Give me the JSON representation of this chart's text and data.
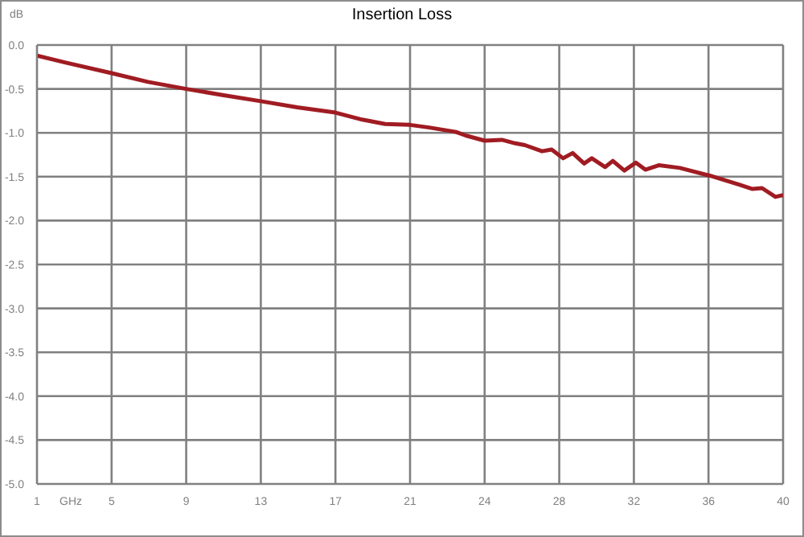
{
  "chart_data": {
    "type": "line",
    "title": "Insertion Loss",
    "xlabel": "GHz",
    "ylabel": "dB",
    "x": [
      1,
      2.5,
      4.9,
      6.8,
      8.8,
      10.7,
      12.7,
      14.6,
      16.6,
      18,
      19.2,
      20.5,
      21.5,
      22.9,
      23.4,
      24.4,
      25.3,
      26,
      26.5,
      27.4,
      27.9,
      28.5,
      29,
      29.6,
      30,
      30.7,
      31.1,
      31.7,
      32.3,
      32.8,
      33.5,
      34.6,
      36.2,
      37.7,
      38.4,
      38.9,
      39.6,
      40
    ],
    "series": [
      {
        "color": "#a01c22",
        "values": [
          -0.12,
          -0.2,
          -0.32,
          -0.42,
          -0.5,
          -0.57,
          -0.64,
          -0.71,
          -0.77,
          -0.85,
          -0.9,
          -0.91,
          -0.94,
          -0.99,
          -1.03,
          -1.09,
          -1.08,
          -1.12,
          -1.14,
          -1.21,
          -1.19,
          -1.29,
          -1.23,
          -1.35,
          -1.29,
          -1.39,
          -1.32,
          -1.43,
          -1.34,
          -1.42,
          -1.37,
          -1.4,
          -1.49,
          -1.59,
          -1.64,
          -1.63,
          -1.73,
          -1.71
        ]
      }
    ],
    "xlim": [
      1,
      40
    ],
    "xticks": [
      1,
      {
        "value": 4.9,
        "label": "5"
      },
      {
        "value": 8.8,
        "label": "9"
      },
      {
        "value": 12.7,
        "label": "13"
      },
      {
        "value": 16.6,
        "label": "17"
      },
      {
        "value": 20.5,
        "label": "21"
      },
      {
        "value": 24.4,
        "label": "24"
      },
      {
        "value": 28.3,
        "label": "28"
      },
      {
        "value": 32.2,
        "label": "32"
      },
      {
        "value": 36.1,
        "label": "36"
      },
      40
    ],
    "ylim": [
      -5,
      0
    ],
    "yticks": [
      {
        "value": -5,
        "label": "-5.0"
      },
      {
        "value": -4.5,
        "label": "-4.5"
      },
      {
        "value": -4,
        "label": "-4.0"
      },
      {
        "value": -3.5,
        "label": "-3.5"
      },
      {
        "value": -3,
        "label": "-3.0"
      },
      {
        "value": -2.5,
        "label": "-2.5"
      },
      {
        "value": -2,
        "label": "-2.0"
      },
      {
        "value": -1.5,
        "label": "-1.5"
      },
      {
        "value": -1,
        "label": "-1.0"
      },
      {
        "value": -0.5,
        "label": "-0.5"
      },
      {
        "value": 0,
        "label": "0.0"
      }
    ],
    "grid": true,
    "marker": "none",
    "line_style": "solid"
  }
}
